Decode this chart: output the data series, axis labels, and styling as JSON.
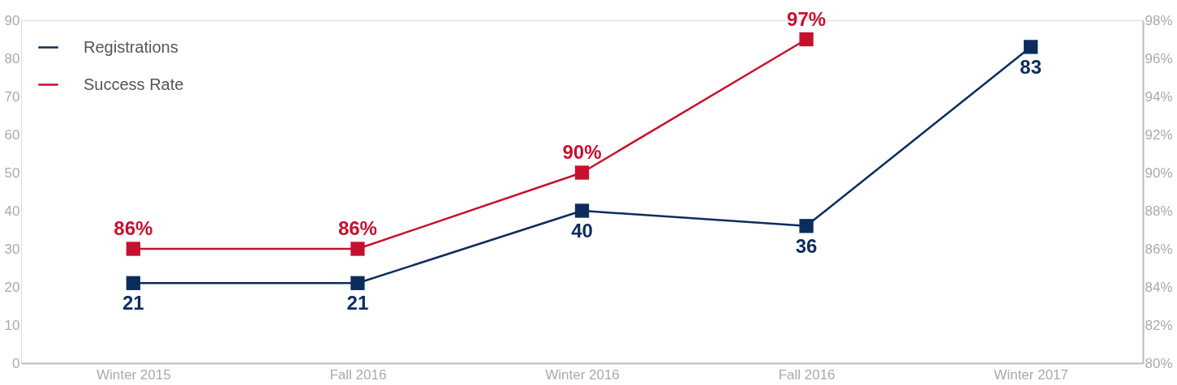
{
  "chart_data": {
    "type": "line",
    "categories": [
      "Winter 2015",
      "Fall 2016",
      "Winter 2016",
      "Fall 2016",
      "Winter 2017"
    ],
    "series": [
      {
        "name": "Registrations",
        "color": "#0c2d5c",
        "values": [
          21,
          21,
          40,
          36,
          83
        ],
        "value_labels": [
          "21",
          "21",
          "40",
          "36",
          "83"
        ]
      },
      {
        "name": "Success Rate",
        "color": "#c8102e",
        "axis": "y2",
        "values": [
          86,
          86,
          90,
          97,
          null
        ],
        "value_labels": [
          "86%",
          "86%",
          "90%",
          "97%",
          null
        ]
      }
    ],
    "ylim": [
      0,
      90
    ],
    "yticks": [
      0,
      10,
      20,
      30,
      40,
      50,
      60,
      70,
      80,
      90
    ],
    "y2lim": [
      80,
      98
    ],
    "y2ticks": [
      {
        "value": 80,
        "label": "80%"
      },
      {
        "value": 82,
        "label": "82%"
      },
      {
        "value": 84,
        "label": "84%"
      },
      {
        "value": 86,
        "label": "86%"
      },
      {
        "value": 88,
        "label": "88%"
      },
      {
        "value": 90,
        "label": "90%"
      },
      {
        "value": 92,
        "label": "92%"
      },
      {
        "value": 94,
        "label": "94%"
      },
      {
        "value": 96,
        "label": "96%"
      },
      {
        "value": 98,
        "label": "98%"
      }
    ],
    "marker": "square",
    "line_style": "solid",
    "grid": false,
    "legend": "top left"
  }
}
